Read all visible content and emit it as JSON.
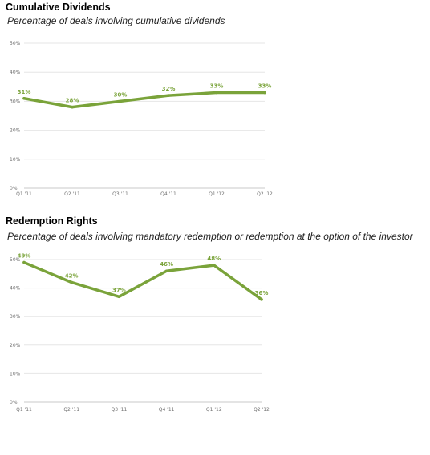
{
  "colors": {
    "series": "#7aa33a",
    "grid": "#e6e6e6",
    "axis": "#c8c8c8",
    "tick_text": "#707070"
  },
  "chart_data": [
    {
      "type": "line",
      "title": "Cumulative Dividends",
      "subtitle": "Percentage of deals involving cumulative dividends",
      "categories": [
        "Q1 '11",
        "Q2 '11",
        "Q3 '11",
        "Q4 '11",
        "Q1 '12",
        "Q2 '12"
      ],
      "y_ticks": [
        "0%",
        "10%",
        "20%",
        "30%",
        "40%",
        "50%"
      ],
      "ylim": [
        0,
        50
      ],
      "grid": true,
      "series": [
        {
          "values": [
            31,
            28,
            30,
            32,
            33,
            33
          ],
          "labels": [
            "31%",
            "28%",
            "30%",
            "32%",
            "33%",
            "33%"
          ]
        }
      ]
    },
    {
      "type": "line",
      "title": "Redemption Rights",
      "subtitle": "Percentage of deals involving mandatory redemption or redemption at the option of the investor",
      "categories": [
        "Q1 '11",
        "Q2 '11",
        "Q3 '11",
        "Q4 '11",
        "Q1 '12",
        "Q2 '12"
      ],
      "y_ticks": [
        "0%",
        "10%",
        "20%",
        "30%",
        "40%",
        "50%"
      ],
      "ylim": [
        0,
        50
      ],
      "grid": true,
      "series": [
        {
          "values": [
            49,
            42,
            37,
            46,
            48,
            36
          ],
          "labels": [
            "49%",
            "42%",
            "37%",
            "46%",
            "48%",
            "36%"
          ]
        }
      ]
    }
  ]
}
